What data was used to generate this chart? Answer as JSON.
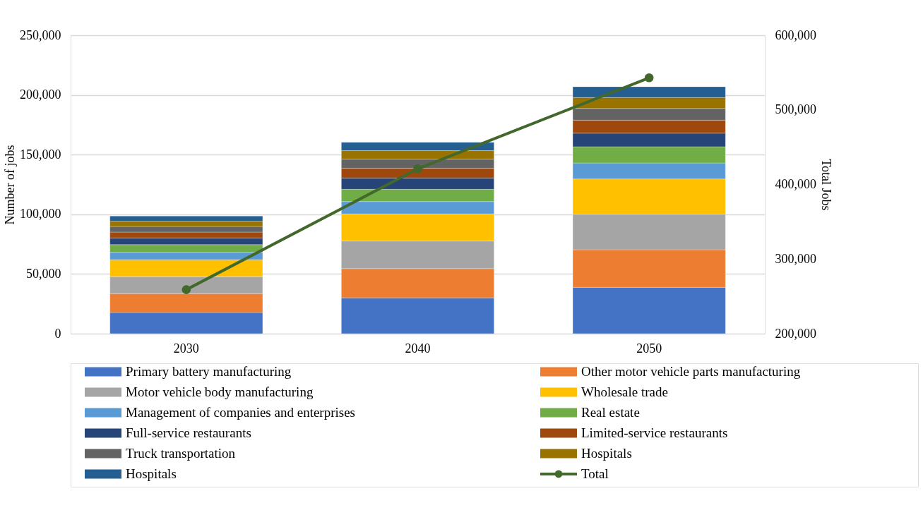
{
  "chart_data": {
    "type": "bar",
    "stacked": true,
    "categories": [
      "2030",
      "2040",
      "2050"
    ],
    "ylabel": "Number of jobs",
    "y2label": "Total Jobs",
    "ylim": [
      0,
      250000
    ],
    "yticks": [
      0,
      {
        "value": 50000,
        "label": "50,000"
      },
      {
        "value": 100000,
        "label": "100,000"
      },
      {
        "value": 150000,
        "label": "150,000"
      },
      {
        "value": 200000,
        "label": "200,000"
      },
      {
        "value": 250000,
        "label": "250,000"
      }
    ],
    "y2lim": [
      200000,
      600000
    ],
    "y2ticks": [
      {
        "value": 200000,
        "label": "200,000"
      },
      {
        "value": 300000,
        "label": "300,000"
      },
      {
        "value": 400000,
        "label": "400,000"
      },
      {
        "value": 500000,
        "label": "500,000"
      },
      {
        "value": 600000,
        "label": "600,000"
      }
    ],
    "grid": "y",
    "legend": "bottom",
    "marker": "circle",
    "series": [
      {
        "name": "Primary battery manufacturing",
        "color": "#4472c4",
        "values": [
          17900,
          30000,
          38800
        ]
      },
      {
        "name": "Other motor vehicle parts manufacturing",
        "color": "#ed7d31",
        "values": [
          15600,
          24500,
          31500
        ]
      },
      {
        "name": "Motor vehicle body manufacturing",
        "color": "#a5a5a5",
        "values": [
          14200,
          23100,
          29800
        ]
      },
      {
        "name": "Wholesale trade",
        "color": "#ffc000",
        "values": [
          14200,
          22700,
          29500
        ]
      },
      {
        "name": "Management of companies and enterprises",
        "color": "#5b9bd5",
        "values": [
          6200,
          10400,
          13400
        ]
      },
      {
        "name": "Real estate",
        "color": "#70ad47",
        "values": [
          6500,
          10300,
          13600
        ]
      },
      {
        "name": "Full-service restaurants",
        "color": "#264478",
        "values": [
          5600,
          9400,
          11400
        ]
      },
      {
        "name": "Limited-service restaurants",
        "color": "#9e480e",
        "values": [
          4900,
          8300,
          10900
        ]
      },
      {
        "name": "Truck transportation",
        "color": "#636363",
        "values": [
          4700,
          7500,
          9800
        ]
      },
      {
        "name": "Hospitals",
        "color": "#997300",
        "values": [
          4300,
          7100,
          9100
        ]
      },
      {
        "name": "Hospitals",
        "color": "#255e91",
        "values": [
          4400,
          7000,
          9100
        ]
      },
      {
        "name": "Total",
        "type": "line",
        "axis": "y2",
        "color": "#43682b",
        "values": [
          259000,
          421000,
          543000
        ]
      }
    ]
  }
}
